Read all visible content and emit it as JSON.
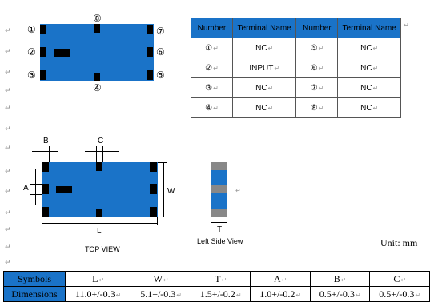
{
  "pin_numbers": [
    "①",
    "②",
    "③",
    "④",
    "⑤",
    "⑥",
    "⑦",
    "⑧"
  ],
  "terminal_table": {
    "headers": [
      "Number",
      "Terminal Name",
      "Number",
      "Terminal Name"
    ],
    "rows": [
      [
        "①",
        "NC",
        "⑤",
        "NC"
      ],
      [
        "②",
        "INPUT",
        "⑥",
        "NC"
      ],
      [
        "③",
        "NC",
        "⑦",
        "NC"
      ],
      [
        "④",
        "NC",
        "⑧",
        "NC"
      ]
    ]
  },
  "dim_labels": {
    "b": "B",
    "c": "C",
    "a": "A",
    "w": "W",
    "l": "L",
    "t": "T"
  },
  "top_view_label": "TOP VIEW",
  "side_view_label": "Left Side View",
  "unit_text": "Unit: mm",
  "dimensions_table": {
    "symbols_label": "Symbols",
    "dimensions_label": "Dimensions",
    "symbols": [
      "L",
      "W",
      "T",
      "A",
      "B",
      "C"
    ],
    "values": [
      "11.0+/-0.3",
      "5.1+/-0.3",
      "1.5+/-0.2",
      "1.0+/-0.2",
      "0.5+/-0.3",
      "0.5+/-0.3"
    ]
  },
  "colors": {
    "chip_blue": "#1a73c8",
    "pad_black": "#000000",
    "side_gray": "#888888"
  }
}
